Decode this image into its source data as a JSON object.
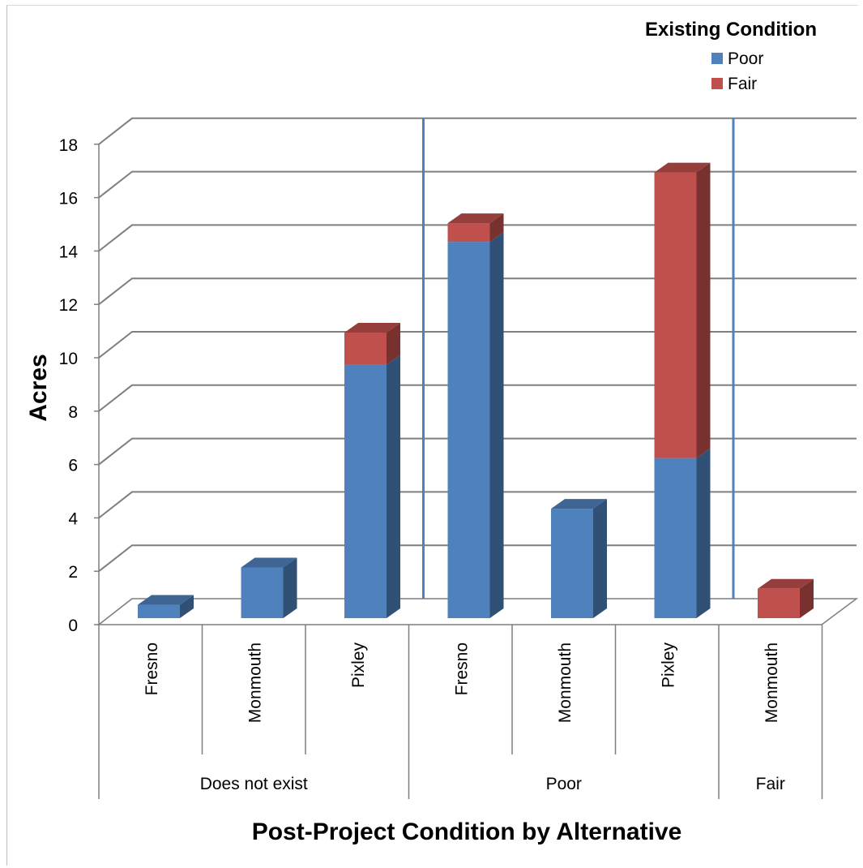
{
  "chart_data": {
    "type": "bar",
    "stacked": true,
    "three_d": true,
    "title": "",
    "xlabel": "Post-Project Condition by Alternative",
    "ylabel": "Acres",
    "ylim": [
      0,
      18
    ],
    "yticks": [
      0,
      2,
      4,
      6,
      8,
      10,
      12,
      14,
      16,
      18
    ],
    "grid": true,
    "legend": {
      "title": "Existing Condition",
      "position": "top-right"
    },
    "groups": [
      {
        "label": "Does not exist",
        "categories": [
          "Fresno",
          "Monmouth",
          "Pixley"
        ]
      },
      {
        "label": "Poor",
        "categories": [
          "Fresno",
          "Monmouth",
          "Pixley"
        ]
      },
      {
        "label": "Fair",
        "categories": [
          "Monmouth"
        ]
      }
    ],
    "categories": [
      "Fresno",
      "Monmouth",
      "Pixley",
      "Fresno",
      "Monmouth",
      "Pixley",
      "Monmouth"
    ],
    "series": [
      {
        "name": "Poor",
        "color": "#4f81bd",
        "values": [
          0.5,
          1.9,
          9.5,
          14.1,
          4.1,
          6.0,
          0
        ]
      },
      {
        "name": "Fair",
        "color": "#c0504d",
        "values": [
          0,
          0,
          1.2,
          0.7,
          0,
          10.7,
          1.1
        ]
      }
    ]
  }
}
